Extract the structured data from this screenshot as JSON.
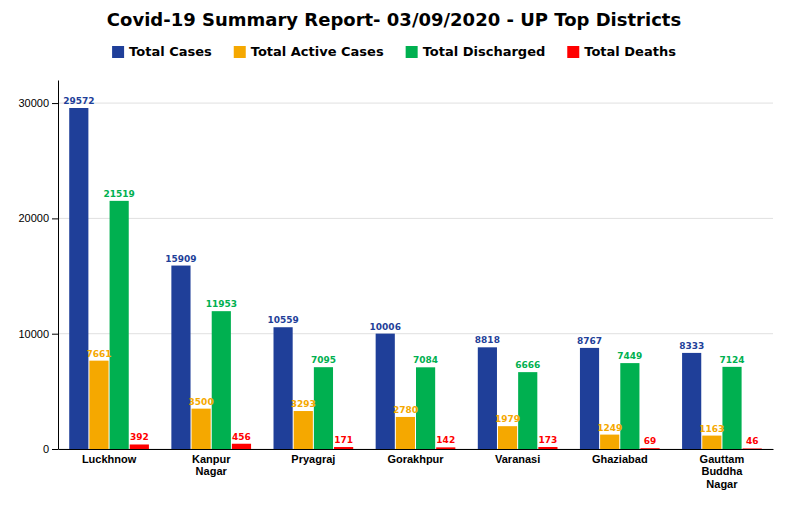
{
  "chart_data": {
    "type": "bar",
    "title": "Covid-19 Summary Report- 03/09/2020 - UP Top Districts",
    "categories": [
      "Luckhnow",
      "Kanpur\nNagar",
      "Pryagraj",
      "Gorakhpur",
      "Varanasi",
      "Ghaziabad",
      "Gauttam\nBuddha\nNagar"
    ],
    "series": [
      {
        "name": "Total Cases",
        "color": "#1f3f99",
        "values": [
          29572,
          15909,
          10559,
          10006,
          8818,
          8767,
          8333
        ]
      },
      {
        "name": "Total Active Cases",
        "color": "#f5a800",
        "values": [
          7661,
          3500,
          3293,
          2780,
          1979,
          1249,
          1163
        ]
      },
      {
        "name": "Total Discharged",
        "color": "#00b050",
        "values": [
          21519,
          11953,
          7095,
          7084,
          6666,
          7449,
          7124
        ]
      },
      {
        "name": "Total Deaths",
        "color": "#ff0000",
        "values": [
          392,
          456,
          171,
          142,
          173,
          69,
          46
        ]
      }
    ],
    "ylim": [
      0,
      32000
    ],
    "yticks": [
      0,
      10000,
      20000,
      30000
    ],
    "grid": true,
    "legend": "top",
    "data_labels": true
  }
}
